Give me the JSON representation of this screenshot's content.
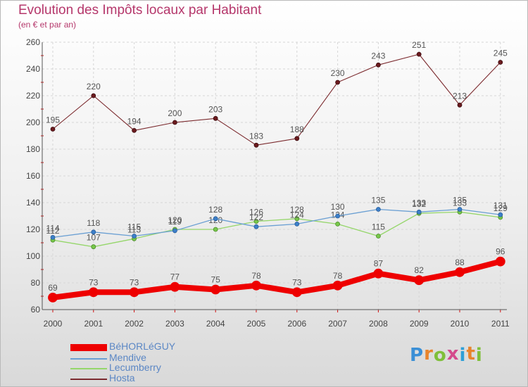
{
  "title": "Evolution des Impôts locaux par Habitant",
  "subtitle": "(en € et par an)",
  "logo": {
    "letters": [
      "P",
      "r",
      "o",
      "x",
      "i",
      "t",
      "i"
    ],
    "colors": [
      "#3a8fd6",
      "#e8842c",
      "#7fbf3a",
      "#d44a8c",
      "#2e9fd8",
      "#e8842c",
      "#7fbf3a"
    ]
  },
  "chart_data": {
    "type": "line",
    "title": "Evolution des Impôts locaux par Habitant",
    "subtitle": "(en € et par an)",
    "categories": [
      "2000",
      "2001",
      "2002",
      "2003",
      "2004",
      "2005",
      "2006",
      "2007",
      "2008",
      "2009",
      "2010",
      "2011"
    ],
    "ylim": [
      60,
      260
    ],
    "yticks": [
      "60",
      "80",
      "100",
      "120",
      "140",
      "160",
      "180",
      "200",
      "220",
      "240",
      "260"
    ],
    "grid": true,
    "legend_position": "bottom-left",
    "series": [
      {
        "name": "BéHORLéGUY",
        "color": "#ee0000",
        "values": [
          69,
          73,
          73,
          77,
          75,
          78,
          73,
          78,
          87,
          82,
          88,
          96
        ],
        "labels": [
          "69",
          "73",
          "73",
          "77",
          "75",
          "78",
          "73",
          "78",
          "87",
          "82",
          "88",
          "96"
        ]
      },
      {
        "name": "Mendive",
        "color": "#6a9fd3",
        "values": [
          114,
          118,
          115,
          119,
          128,
          122,
          124,
          130,
          135,
          133,
          135,
          131
        ],
        "labels": [
          "114",
          "118",
          "115",
          "119",
          "128",
          "122",
          "124",
          "130",
          "135",
          "133",
          "135",
          "131"
        ]
      },
      {
        "name": "Lecumberry",
        "color": "#95d66a",
        "values": [
          112,
          107,
          113,
          120,
          120,
          126,
          128,
          124,
          115,
          132,
          133,
          129
        ],
        "labels": [
          "112",
          "107",
          "113",
          "120",
          "120",
          "126",
          "128",
          "124",
          "115",
          "132",
          "133",
          "129"
        ]
      },
      {
        "name": "Hosta",
        "color": "#7b2a2e",
        "values": [
          195,
          220,
          194,
          200,
          203,
          183,
          188,
          230,
          243,
          251,
          213,
          245
        ],
        "labels": [
          "195",
          "220",
          "194",
          "200",
          "203",
          "183",
          "188",
          "230",
          "243",
          "251",
          "213",
          "245"
        ]
      }
    ]
  }
}
